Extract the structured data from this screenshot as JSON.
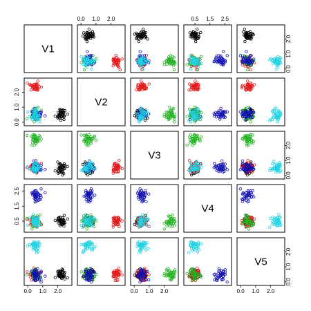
{
  "chart_data": {
    "type": "scatter",
    "kind": "scatterplot-matrix",
    "variables": [
      "V1",
      "V2",
      "V3",
      "V4",
      "V5"
    ],
    "axis_range": [
      -0.1,
      2.8
    ],
    "ticks": [
      0.0,
      1.0,
      2.0
    ],
    "tick_labels": [
      "0.0",
      "1.0",
      "2.0"
    ],
    "tick_labels_V4": [
      "0.5",
      "1.5",
      "2.5"
    ],
    "grid": false,
    "legend": "none",
    "clusters": [
      {
        "color": "#000000",
        "points_per_cluster": 40,
        "center": {
          "V1": 2.2,
          "V2": 0.5,
          "V3": 0.5,
          "V4": 0.5,
          "V5": 0.5
        },
        "spread": 0.18
      },
      {
        "color": "#e31a1c",
        "points_per_cluster": 40,
        "center": {
          "V1": 0.5,
          "V2": 2.4,
          "V3": 0.5,
          "V4": 0.5,
          "V5": 0.5
        },
        "spread": 0.18
      },
      {
        "color": "#22b322",
        "points_per_cluster": 40,
        "center": {
          "V1": 0.5,
          "V2": 0.5,
          "V3": 2.4,
          "V4": 0.5,
          "V5": 0.5
        },
        "spread": 0.18
      },
      {
        "color": "#1010b0",
        "points_per_cluster": 40,
        "center": {
          "V1": 0.5,
          "V2": 0.5,
          "V3": 0.5,
          "V4": 2.2,
          "V5": 0.5
        },
        "spread": 0.2
      },
      {
        "color": "#22d3e3",
        "points_per_cluster": 40,
        "center": {
          "V1": 0.5,
          "V2": 0.5,
          "V3": 0.5,
          "V4": 0.5,
          "V5": 2.4
        },
        "spread": 0.18
      }
    ]
  }
}
